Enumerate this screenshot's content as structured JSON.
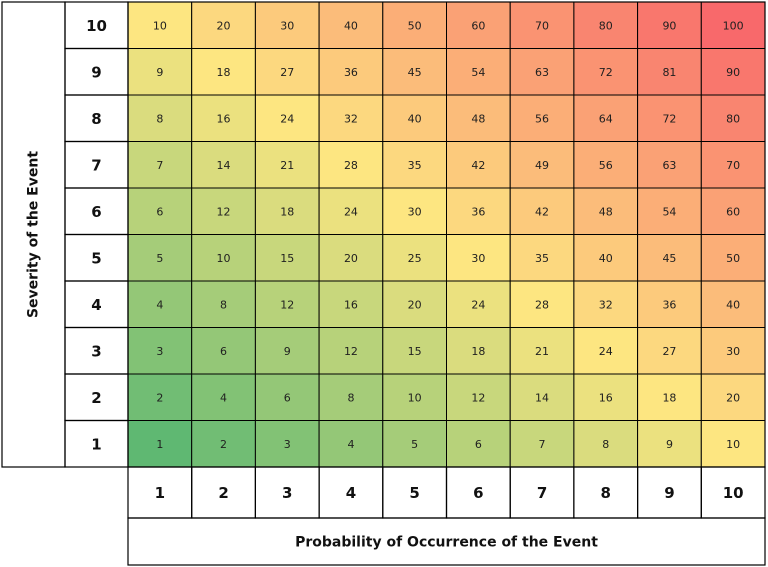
{
  "chart_data": {
    "type": "heatmap",
    "title": "",
    "xlabel": "Probability of Occurrence of the Event",
    "ylabel": "Severity of the Event",
    "x_categories": [
      "1",
      "2",
      "3",
      "4",
      "5",
      "6",
      "7",
      "8",
      "9",
      "10"
    ],
    "y_categories": [
      "10",
      "9",
      "8",
      "7",
      "6",
      "5",
      "4",
      "3",
      "2",
      "1"
    ],
    "values": [
      [
        10,
        20,
        30,
        40,
        50,
        60,
        70,
        80,
        90,
        100
      ],
      [
        9,
        18,
        27,
        36,
        45,
        54,
        63,
        72,
        81,
        90
      ],
      [
        8,
        16,
        24,
        32,
        40,
        48,
        56,
        64,
        72,
        80
      ],
      [
        7,
        14,
        21,
        28,
        35,
        42,
        49,
        56,
        63,
        70
      ],
      [
        6,
        12,
        18,
        24,
        30,
        36,
        42,
        48,
        54,
        60
      ],
      [
        5,
        10,
        15,
        20,
        25,
        30,
        35,
        40,
        45,
        50
      ],
      [
        4,
        8,
        12,
        16,
        20,
        24,
        28,
        32,
        36,
        40
      ],
      [
        3,
        6,
        9,
        12,
        15,
        18,
        21,
        24,
        27,
        30
      ],
      [
        2,
        4,
        6,
        8,
        10,
        12,
        14,
        16,
        18,
        20
      ],
      [
        1,
        2,
        3,
        4,
        5,
        6,
        7,
        8,
        9,
        10
      ]
    ],
    "colors": {
      "low": "#5fb872",
      "mid": "#fde681",
      "high": "#f8696b",
      "gridline": "#000000",
      "background": "#ffffff"
    },
    "legend": "none",
    "grid": true
  }
}
